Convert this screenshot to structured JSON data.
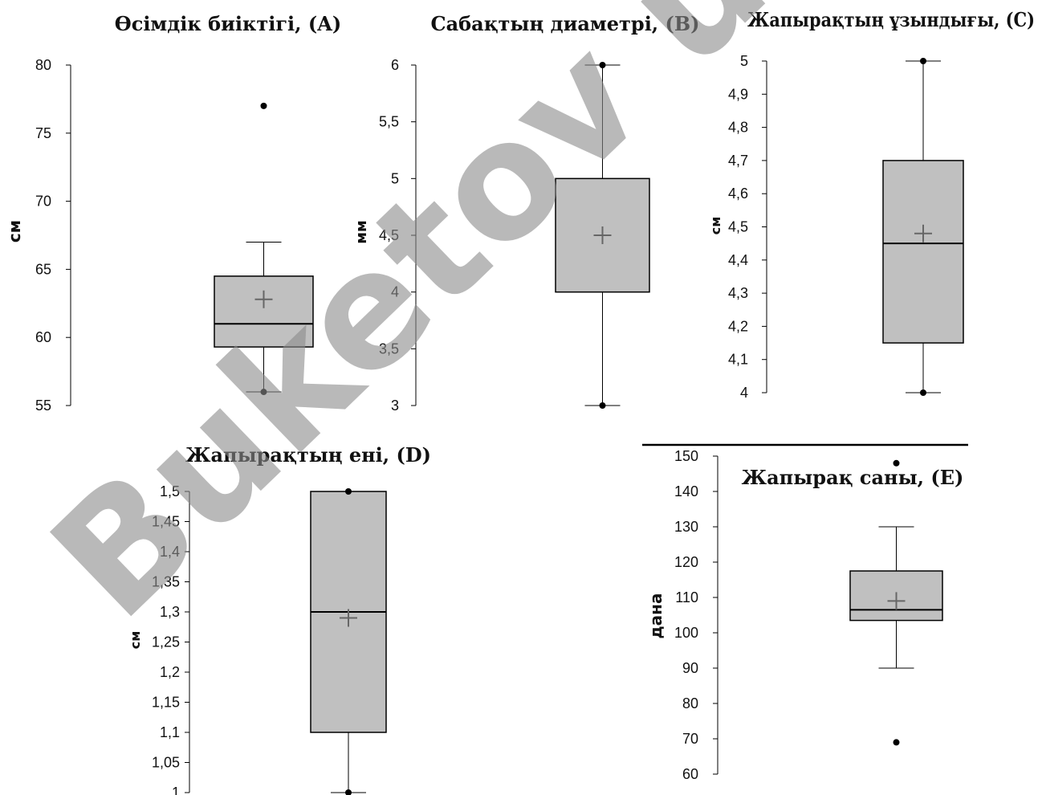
{
  "watermark": "Buketov univ",
  "chart_data": [
    {
      "type": "box",
      "title": "Өсімдік биіктігі, (A)",
      "ylabel": "см",
      "ylim": [
        55,
        80
      ],
      "yticks": [
        "55",
        "60",
        "65",
        "70",
        "75",
        "80"
      ],
      "box": {
        "whisker_low": 56,
        "q1": 59.3,
        "median": 61,
        "q3": 64.5,
        "whisker_high": 67,
        "mean": 62.8
      },
      "points": [
        77,
        56
      ]
    },
    {
      "type": "box",
      "title": "Сабақтың диаметрі, (B)",
      "ylabel": "мм",
      "ylim": [
        3,
        6
      ],
      "yticks": [
        "3",
        "3,5",
        "4",
        "4,5",
        "5",
        "5,5",
        "6"
      ],
      "box": {
        "whisker_low": 3,
        "q1": 4,
        "median": null,
        "q3": 5,
        "whisker_high": 6,
        "mean": 4.5
      },
      "points": [
        6,
        3
      ]
    },
    {
      "type": "box",
      "title": "Жапырақтың ұзындығы, (C)",
      "ylabel": "см",
      "ylim": [
        4,
        5
      ],
      "yticks": [
        "4",
        "4,1",
        "4,2",
        "4,3",
        "4,4",
        "4,5",
        "4,6",
        "4,7",
        "4,8",
        "4,9",
        "5"
      ],
      "box": {
        "whisker_low": 4,
        "q1": 4.15,
        "median": 4.45,
        "q3": 4.7,
        "whisker_high": 5,
        "mean": 4.48
      },
      "points": [
        5,
        4
      ]
    },
    {
      "type": "box",
      "title": "Жапырақтың ені, (D)",
      "ylabel": "см",
      "ylim": [
        1,
        1.5
      ],
      "yticks": [
        "1",
        "1,05",
        "1,1",
        "1,15",
        "1,2",
        "1,25",
        "1,3",
        "1,35",
        "1,4",
        "1,45",
        "1,5"
      ],
      "box": {
        "whisker_low": 1,
        "q1": 1.1,
        "median": 1.3,
        "q3": 1.5,
        "whisker_high": 1.5,
        "mean": 1.29
      },
      "points": [
        1.5,
        1
      ]
    },
    {
      "type": "box",
      "title": "Жапырақ саны, (E)",
      "ylabel": "дана",
      "ylim": [
        60,
        150
      ],
      "yticks": [
        "60",
        "70",
        "80",
        "90",
        "100",
        "110",
        "120",
        "130",
        "140",
        "150"
      ],
      "box": {
        "whisker_low": 90,
        "q1": 103.5,
        "median": 106.5,
        "q3": 117.5,
        "whisker_high": 130,
        "mean": 109
      },
      "points": [
        148,
        69
      ]
    }
  ]
}
